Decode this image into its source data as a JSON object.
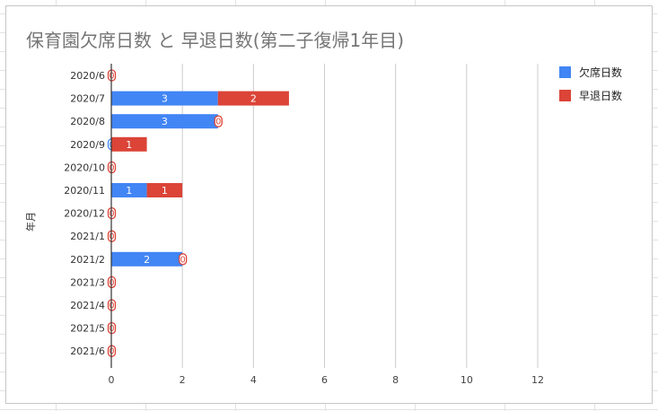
{
  "chart_data": {
    "type": "bar",
    "orientation": "horizontal",
    "stacked": true,
    "title": "保育園欠席日数 と 早退日数(第二子復帰1年目)",
    "ylabel": "年月",
    "xlabel": "",
    "xlim": [
      0,
      12
    ],
    "xticks": [
      0,
      2,
      4,
      6,
      8,
      10,
      12
    ],
    "grid": true,
    "legend_position": "right",
    "categories": [
      "2020/6",
      "2020/7",
      "2020/8",
      "2020/9",
      "2020/10",
      "2020/11",
      "2020/12",
      "2021/1",
      "2021/2",
      "2021/3",
      "2021/4",
      "2021/5",
      "2021/6"
    ],
    "series": [
      {
        "name": "欠席日数",
        "color": "#4285f4",
        "values": [
          0,
          3,
          3,
          0,
          0,
          1,
          0,
          0,
          2,
          0,
          0,
          0,
          0
        ]
      },
      {
        "name": "早退日数",
        "color": "#db4437",
        "values": [
          0,
          2,
          0,
          1,
          0,
          1,
          0,
          0,
          0,
          0,
          0,
          0,
          0
        ]
      }
    ]
  }
}
